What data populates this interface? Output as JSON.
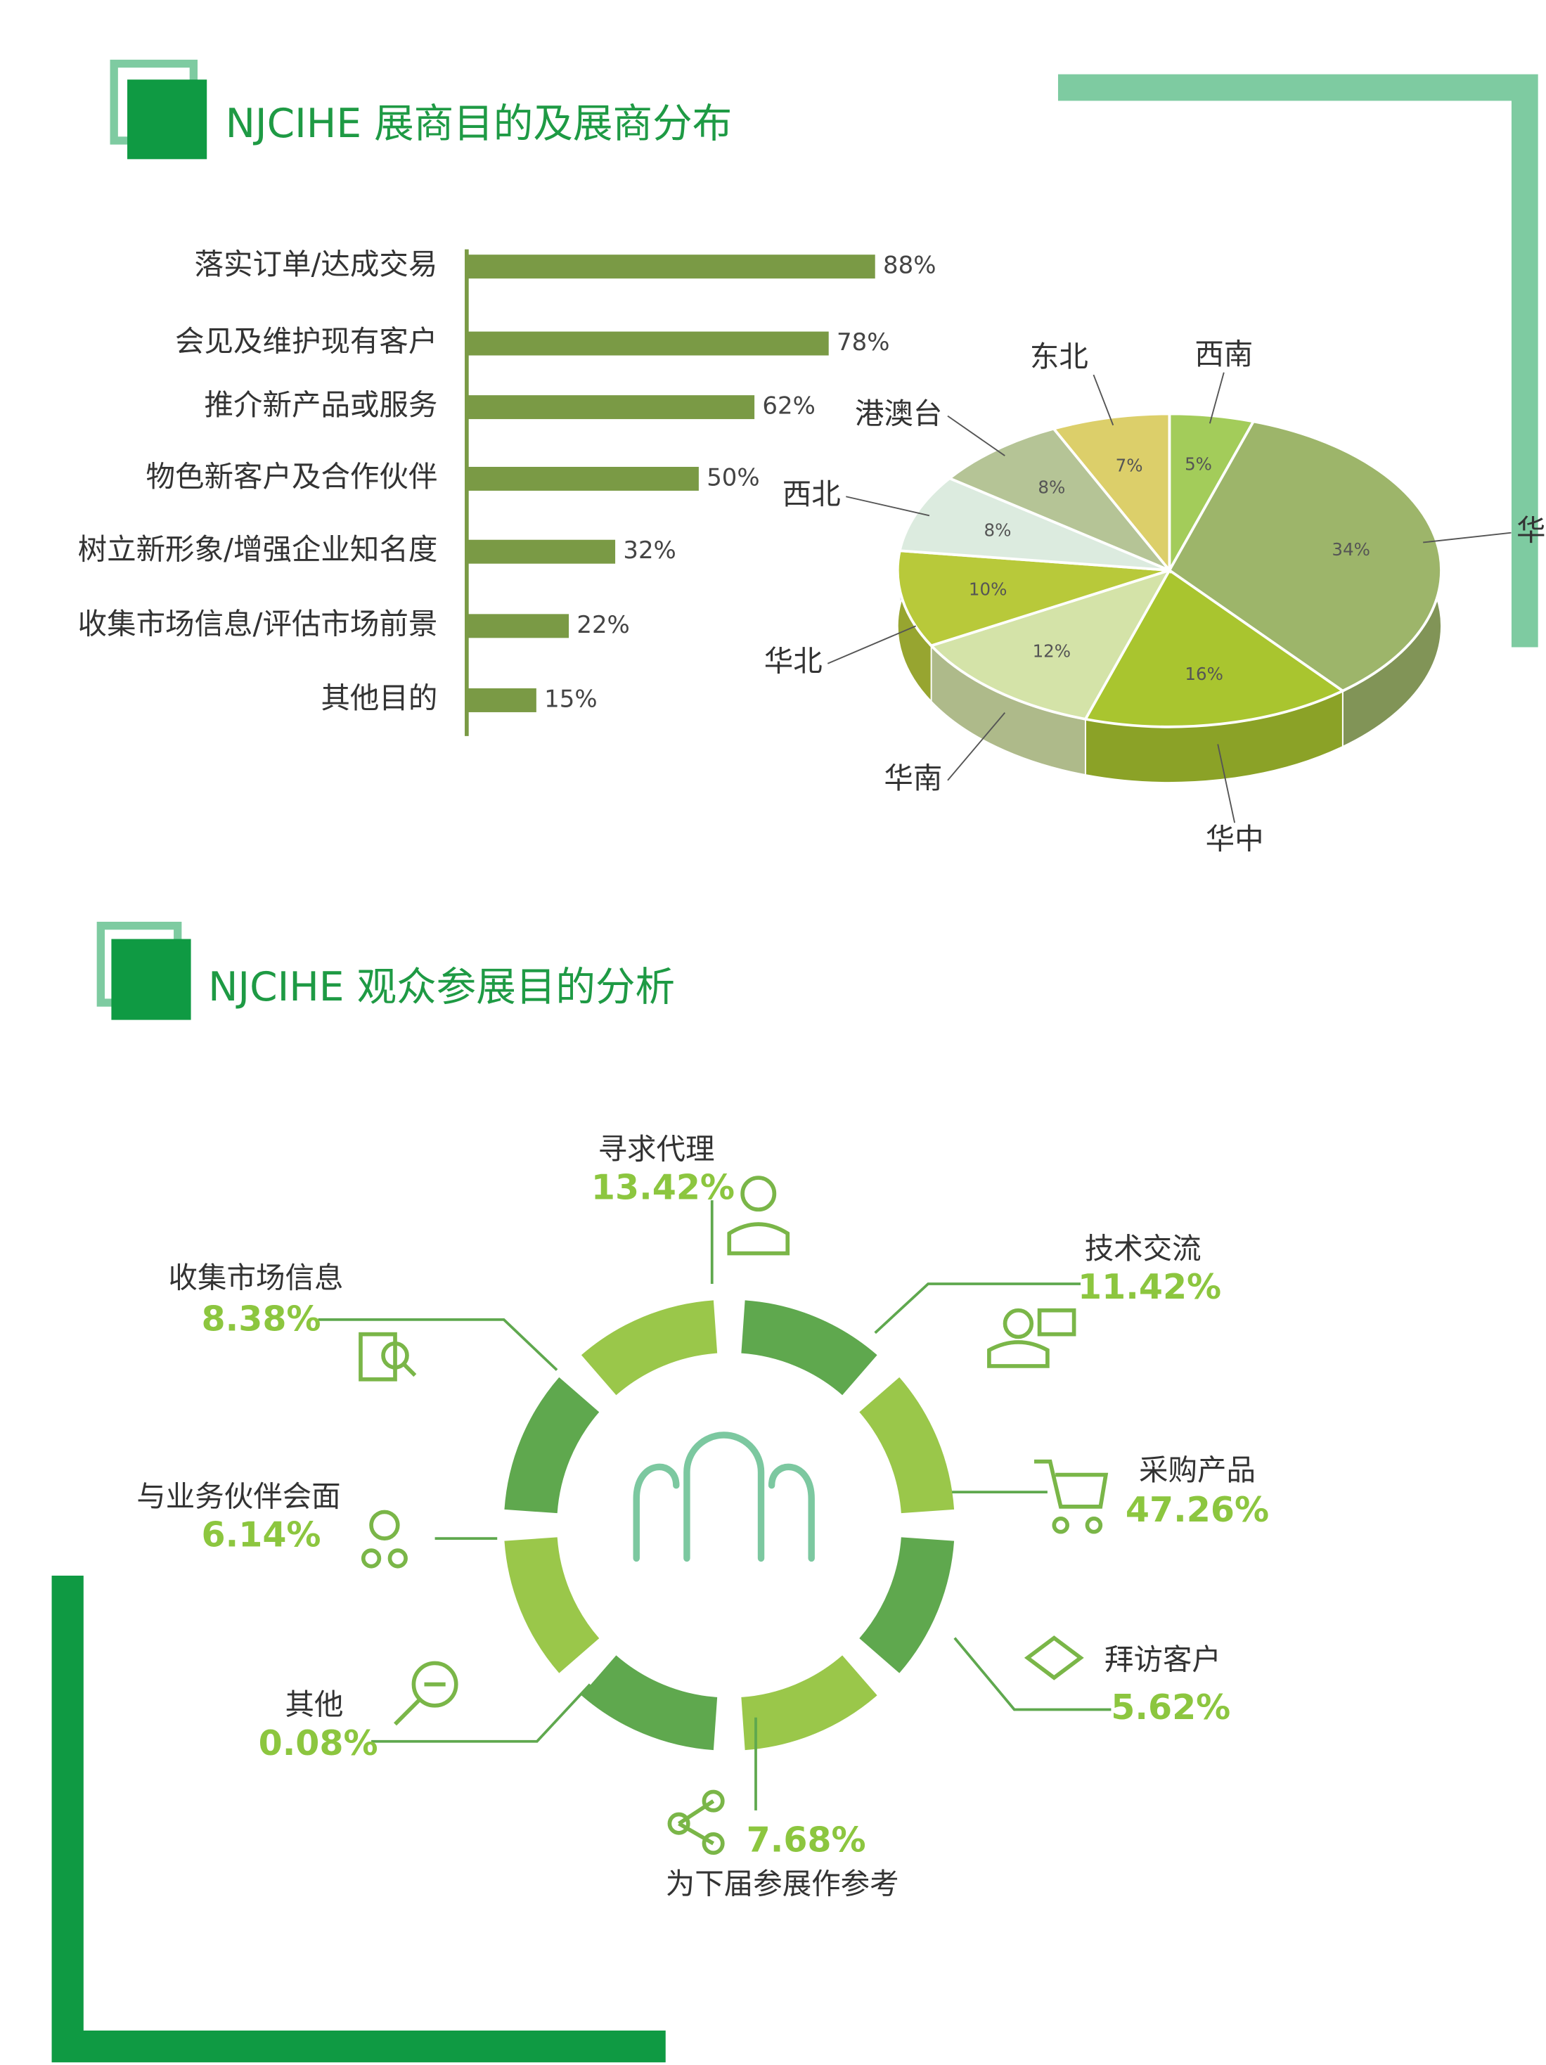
{
  "chart_data": [
    {
      "type": "bar",
      "title": "NJCIHE 展商目的及展商分布",
      "categories": [
        "落实订单/达成交易",
        "会见及维护现有客户",
        "推介新产品或服务",
        "物色新客户及合作伙伴",
        "树立新形象/增强企业知名度",
        "收集市场信息/评估市场前景",
        "其他目的"
      ],
      "values": [
        88,
        78,
        62,
        50,
        32,
        22,
        15
      ],
      "value_labels": [
        "88%",
        "78%",
        "62%",
        "50%",
        "32%",
        "22%",
        "15%"
      ],
      "color": "#7a9a45",
      "xlim": [
        0,
        100
      ]
    },
    {
      "type": "pie",
      "categories": [
        "西南",
        "华东",
        "华中",
        "华南",
        "华北",
        "西北",
        "港澳台",
        "东北"
      ],
      "values": [
        5,
        34,
        16,
        12,
        10,
        8,
        8,
        7
      ],
      "value_labels": [
        "5%",
        "34%",
        "16%",
        "12%",
        "10%",
        "8%",
        "8%",
        "7%"
      ],
      "colors": [
        "#a3cc5a",
        "#9db56a",
        "#a9c52f",
        "#d4e3a8",
        "#b8c93a",
        "#dcebdf",
        "#b5c496",
        "#dccf6a"
      ]
    }
  ],
  "audience": {
    "title": "NJCIHE 观众参展目的分析",
    "items": [
      {
        "label": "寻求代理",
        "value": "13.42%"
      },
      {
        "label": "技术交流",
        "value": "11.42%"
      },
      {
        "label": "采购产品",
        "value": "47.26%"
      },
      {
        "label": "拜访客户",
        "value": "5.62%"
      },
      {
        "label": "为下届参展作参考",
        "value": "7.68%"
      },
      {
        "label": "其他",
        "value": "0.08%"
      },
      {
        "label": "与业务伙伴会面",
        "value": "6.14%"
      },
      {
        "label": "收集市场信息",
        "value": "8.38%"
      }
    ]
  }
}
